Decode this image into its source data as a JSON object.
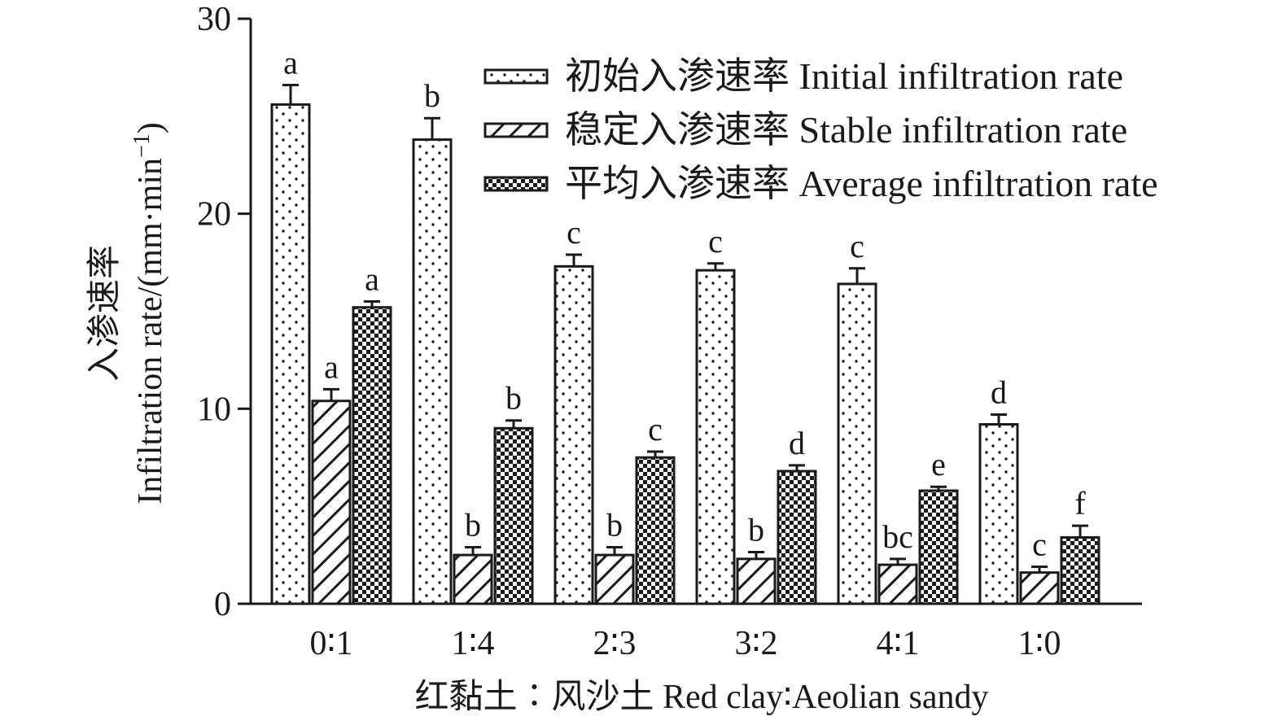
{
  "chart_data": {
    "type": "bar",
    "title": "",
    "xlabel": "红黏土∶风沙土 Red clay∶Aeolian sandy",
    "ylabel_cn": "入渗速率",
    "ylabel_en": "Infiltration rate/(mm·min",
    "ylabel_sup": "−1",
    "ylabel_close": ")",
    "ylim": [
      0,
      30
    ],
    "yticks": [
      "0",
      "10",
      "20",
      "30"
    ],
    "ytick_values": [
      0,
      10,
      20,
      30
    ],
    "categories": [
      "0∶1",
      "1∶4",
      "2∶3",
      "3∶2",
      "4∶1",
      "1∶0"
    ],
    "legend_position": "top-right",
    "series": [
      {
        "name": "初始入渗速率 Initial infiltration rate",
        "pattern": "dots",
        "values": [
          25.6,
          23.8,
          17.3,
          17.1,
          16.4,
          9.2
        ],
        "errors": [
          1.0,
          1.1,
          0.6,
          0.35,
          0.8,
          0.5
        ],
        "letters": [
          "a",
          "b",
          "c",
          "c",
          "c",
          "d"
        ]
      },
      {
        "name": "稳定入渗速率 Stable infiltration rate",
        "pattern": "hatch",
        "values": [
          10.4,
          2.5,
          2.5,
          2.3,
          2.0,
          1.6
        ],
        "errors": [
          0.6,
          0.4,
          0.4,
          0.35,
          0.3,
          0.3
        ],
        "letters": [
          "a",
          "b",
          "b",
          "b",
          "bc",
          "c"
        ]
      },
      {
        "name": "平均入渗速率 Average infiltration rate",
        "pattern": "checker",
        "values": [
          15.2,
          9.0,
          7.5,
          6.8,
          5.8,
          3.4
        ],
        "errors": [
          0.3,
          0.4,
          0.3,
          0.3,
          0.2,
          0.6
        ],
        "letters": [
          "a",
          "b",
          "c",
          "d",
          "e",
          "f"
        ]
      }
    ],
    "colors": {
      "ink": "#1a1a1a",
      "background": "#ffffff"
    }
  }
}
